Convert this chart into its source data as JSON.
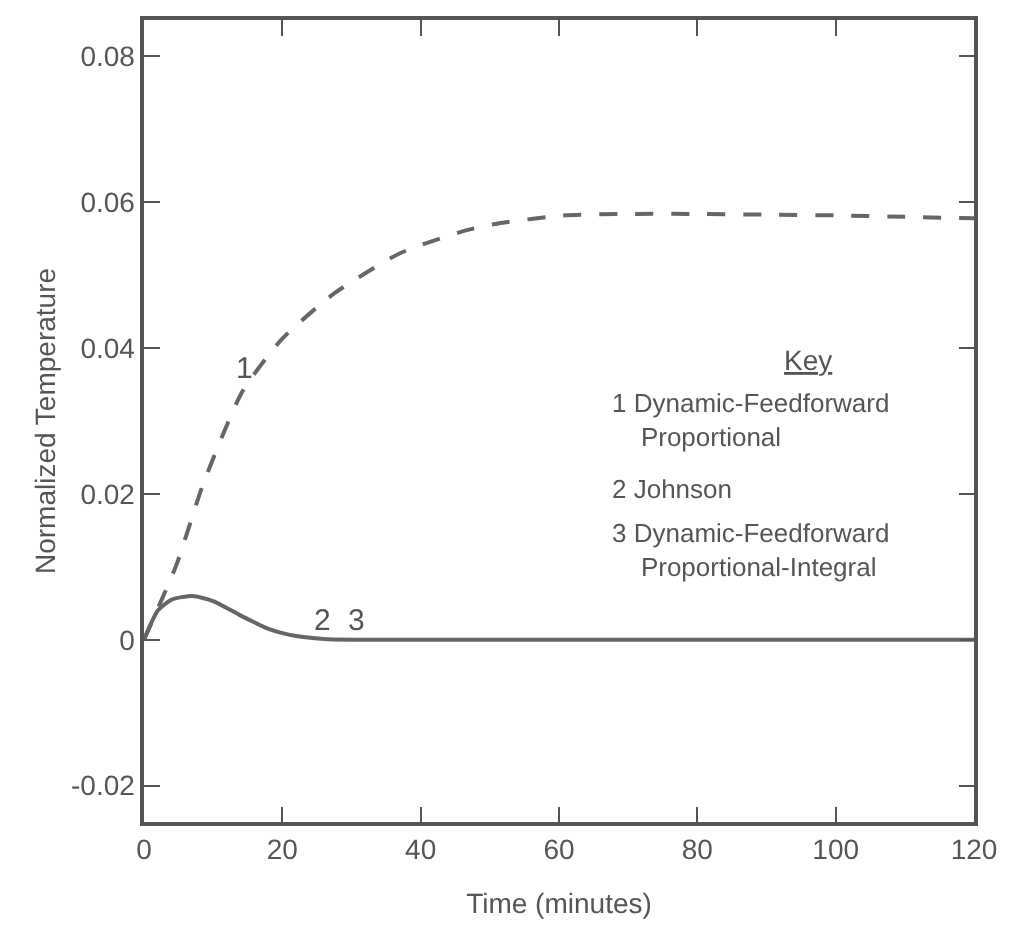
{
  "chart_data": {
    "type": "line",
    "xlabel": "Time (minutes)",
    "ylabel": "Normalized Temperature",
    "xlim": [
      0,
      120
    ],
    "xticks": [
      0,
      20,
      40,
      60,
      80,
      100,
      120
    ],
    "ylim": [
      -0.025,
      0.085
    ],
    "yticks": [
      -0.02,
      0,
      0.02,
      0.04,
      0.06,
      0.08
    ],
    "marker": "none",
    "series": [
      {
        "color": "#666666",
        "line_style": "dashed",
        "x": [
          0,
          4.7,
          8.5,
          14.2,
          19.9,
          27.5,
          37,
          46.4,
          51.2,
          60.6,
          70,
          80,
          90,
          100,
          110,
          120
        ],
        "values": [
          0,
          0.0103,
          0.0212,
          0.034,
          0.0412,
          0.0475,
          0.053,
          0.0561,
          0.0571,
          0.0582,
          0.0584,
          0.0584,
          0.0583,
          0.0582,
          0.058,
          0.0578
        ]
      },
      {
        "color": "#666666",
        "line_style": "solid",
        "x": [
          0,
          2,
          4,
          7,
          10,
          14,
          18,
          22,
          26,
          30,
          60,
          90,
          120
        ],
        "values": [
          0,
          0.004,
          0.0055,
          0.006,
          0.0053,
          0.0033,
          0.0015,
          0.0005,
          0.0001,
          0,
          0,
          0,
          0
        ]
      }
    ],
    "annotations": [
      "1",
      "2",
      "3",
      "Key",
      "1 Dynamic-Feedforward Proportional",
      "2 Johnson",
      "3 Dynamic-Feedforward Proportional-Integral"
    ]
  }
}
